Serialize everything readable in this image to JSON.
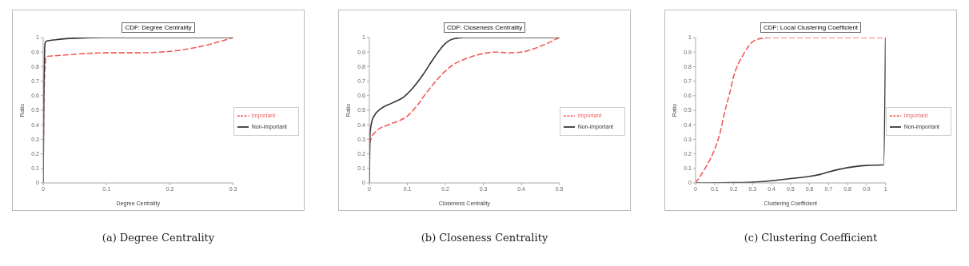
{
  "chart_data": [
    {
      "type": "line",
      "title": "CDF: Degree Centrality",
      "xlabel": "Degree Centrality",
      "ylabel": "Ratio",
      "xlim": [
        0,
        0.3
      ],
      "xticks": [
        0,
        0.1,
        0.2,
        0.3
      ],
      "ylim": [
        0,
        1
      ],
      "yticks": [
        0,
        0.1,
        0.2,
        0.3,
        0.4,
        0.5,
        0.6,
        0.7,
        0.8,
        0.9,
        1
      ],
      "grid": false,
      "legend": "right",
      "marker": "none",
      "annotations": [
        "(a) Degree Centrality"
      ],
      "series": [
        {
          "name": "Important",
          "color": "#f25b5b",
          "line_style": "dashed",
          "x": [
            0,
            0.001,
            0.003,
            0.005,
            0.02,
            0.05,
            0.1,
            0.15,
            0.2,
            0.25,
            0.3
          ],
          "values": [
            0,
            0.5,
            0.8,
            0.87,
            0.875,
            0.885,
            0.895,
            0.895,
            0.905,
            0.94,
            1
          ]
        },
        {
          "name": "Non-important",
          "color": "#333333",
          "line_style": "solid",
          "x": [
            0,
            0.001,
            0.003,
            0.005,
            0.02,
            0.05,
            0.1,
            0.3
          ],
          "values": [
            0,
            0.6,
            0.96,
            0.975,
            0.985,
            0.995,
            1,
            1
          ]
        }
      ]
    },
    {
      "type": "line",
      "title": "CDF: Closeness Centrality",
      "xlabel": "Closeness Centrality",
      "ylabel": "Ratio",
      "xlim": [
        0,
        0.5
      ],
      "xticks": [
        0,
        0.1,
        0.2,
        0.3,
        0.4,
        0.5
      ],
      "ylim": [
        0,
        1
      ],
      "yticks": [
        0,
        0.1,
        0.2,
        0.3,
        0.4,
        0.5,
        0.6,
        0.7,
        0.8,
        0.9,
        1
      ],
      "grid": false,
      "legend": "right",
      "marker": "none",
      "annotations": [
        "(b) Closeness Centrality"
      ],
      "series": [
        {
          "name": "Important",
          "color": "#f25b5b",
          "line_style": "dashed",
          "x": [
            0,
            0.001,
            0.005,
            0.02,
            0.05,
            0.08,
            0.1,
            0.125,
            0.15,
            0.175,
            0.2,
            0.225,
            0.25,
            0.3,
            0.33,
            0.37,
            0.4,
            0.45,
            0.5
          ],
          "values": [
            0,
            0.27,
            0.31,
            0.36,
            0.4,
            0.43,
            0.46,
            0.53,
            0.62,
            0.7,
            0.77,
            0.82,
            0.85,
            0.89,
            0.9,
            0.895,
            0.9,
            0.94,
            1
          ]
        },
        {
          "name": "Non-important",
          "color": "#333333",
          "line_style": "solid",
          "x": [
            0,
            0.002,
            0.01,
            0.03,
            0.06,
            0.09,
            0.11,
            0.14,
            0.17,
            0.2,
            0.22,
            0.25,
            0.5
          ],
          "values": [
            0,
            0.35,
            0.45,
            0.51,
            0.55,
            0.59,
            0.64,
            0.74,
            0.86,
            0.96,
            0.99,
            1,
            1
          ]
        }
      ]
    },
    {
      "type": "line",
      "title": "CDF: Local Clustering Coefficient",
      "xlabel": "Clustering Coefficient",
      "ylabel": "Ratio",
      "xlim": [
        0,
        1
      ],
      "xticks": [
        0,
        0.1,
        0.2,
        0.3,
        0.4,
        0.5,
        0.6,
        0.7,
        0.8,
        0.9,
        1
      ],
      "ylim": [
        0,
        1
      ],
      "yticks": [
        0,
        0.1,
        0.2,
        0.3,
        0.4,
        0.5,
        0.6,
        0.7,
        0.8,
        0.9,
        1
      ],
      "grid": false,
      "legend": "right",
      "marker": "none",
      "annotations": [
        "(c) Clustering Coefficient"
      ],
      "series": [
        {
          "name": "Important",
          "color": "#f25b5b",
          "line_style": "dashed",
          "x": [
            0,
            0.05,
            0.1,
            0.13,
            0.15,
            0.18,
            0.2,
            0.25,
            0.3,
            0.35,
            0.4,
            1
          ],
          "values": [
            0,
            0.1,
            0.23,
            0.35,
            0.47,
            0.62,
            0.73,
            0.88,
            0.97,
            0.995,
            1,
            1
          ]
        },
        {
          "name": "Non-important",
          "color": "#333333",
          "line_style": "solid",
          "x": [
            0,
            0.2,
            0.3,
            0.4,
            0.5,
            0.6,
            0.65,
            0.7,
            0.8,
            0.9,
            0.99,
            1
          ],
          "values": [
            0,
            0.002,
            0.005,
            0.015,
            0.03,
            0.045,
            0.057,
            0.075,
            0.105,
            0.12,
            0.125,
            1
          ]
        }
      ]
    }
  ]
}
